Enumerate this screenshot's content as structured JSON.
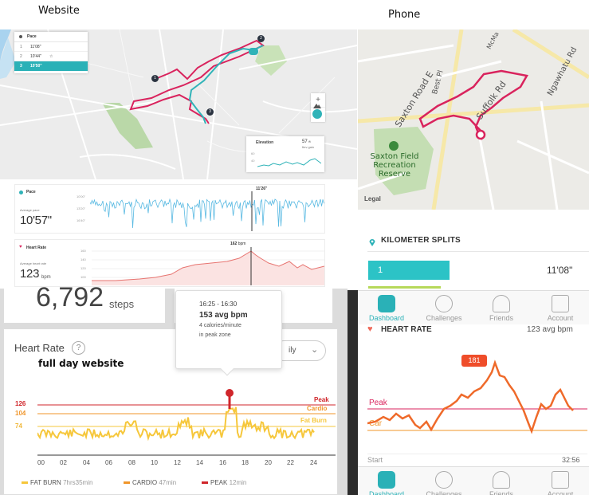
{
  "captions": {
    "website": "Website",
    "phone": "Phone",
    "full_day": "full day website"
  },
  "web_map": {
    "pace_panel": {
      "title": "Pace",
      "rows": [
        {
          "num": "1",
          "value": "11'08\""
        },
        {
          "num": "2",
          "value": "10'44\""
        },
        {
          "num": "3",
          "value": "10'50\""
        }
      ]
    },
    "zoom_in": "+",
    "zoom_out": "−",
    "markers": [
      "1",
      "2",
      "3"
    ],
    "elevation": {
      "title": "Elevation",
      "value": "57",
      "unit": "ft",
      "label": "ftev gain",
      "ticks": [
        "60",
        "40"
      ]
    }
  },
  "pace_chart": {
    "title": "Pace",
    "avg_label": "Average pace",
    "avg_value": "10'57\"",
    "ticks": [
      "10'00\"",
      "13'20\"",
      "16'40\""
    ],
    "cursor_value": "11'26\""
  },
  "hr_chart": {
    "title": "Heart Rate",
    "avg_label": "Average heart rate",
    "avg_value": "123",
    "avg_unit": "bpm",
    "ticks": [
      "160",
      "140",
      "120",
      "100"
    ],
    "cursor_value": "162",
    "cursor_unit": "bpm"
  },
  "phone_map": {
    "streets": [
      "Saxton Road E",
      "Suffolk Rd",
      "Best Pl",
      "Ngawhatu Rd",
      "McMa"
    ],
    "park": [
      "Saxton Field",
      "Recreation Reserve"
    ],
    "legal": "Legal"
  },
  "phone_splits": {
    "title": "KILOMETER SPLITS",
    "first_split": {
      "num": "1",
      "time": "11'08\""
    }
  },
  "phone_tabs": [
    "Dashboard",
    "Challenges",
    "Friends",
    "Account"
  ],
  "phone_hr": {
    "title": "HEART RATE",
    "avg": "123 avg bpm",
    "peak_badge": "181",
    "peak_label": "Peak",
    "cardio_label": "Car",
    "start_label": "Start",
    "end_label": "32:56"
  },
  "steps": {
    "value": "6,792",
    "unit": "steps"
  },
  "full_day": {
    "title": "Heart Rate",
    "help": "?",
    "dropdown": "ily",
    "tooltip": {
      "time": "16:25 - 16:30",
      "bpm": "153 avg bpm",
      "cal": "4 calories/minute",
      "zone": "in peak zone"
    },
    "zones": [
      {
        "value": "126",
        "label": "Peak",
        "color": "#d0262b"
      },
      {
        "value": "104",
        "label": "Cardio",
        "color": "#f0952a"
      },
      {
        "value": "74",
        "label": "Fat Burn",
        "color": "#f6c73b"
      }
    ],
    "x_ticks": [
      "00",
      "02",
      "04",
      "06",
      "08",
      "10",
      "12",
      "14",
      "16",
      "18",
      "20",
      "22",
      "24"
    ],
    "legend": [
      {
        "name": "FAT BURN",
        "duration": "7hrs35min",
        "color": "#f6c73b"
      },
      {
        "name": "CARDIO",
        "duration": "47min",
        "color": "#f0952a"
      },
      {
        "name": "PEAK",
        "duration": "12min",
        "color": "#d0262b"
      }
    ]
  }
}
